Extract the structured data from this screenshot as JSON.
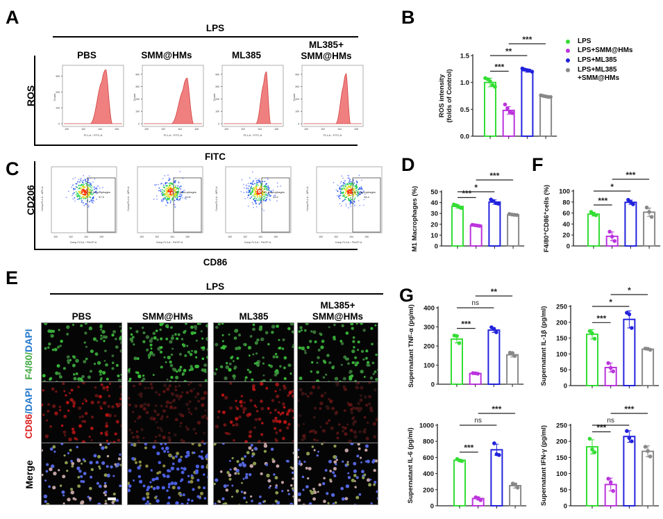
{
  "figure": {
    "panel_letters": {
      "A": "A",
      "B": "B",
      "C": "C",
      "D": "D",
      "E": "E",
      "F": "F",
      "G": "G"
    },
    "groups": [
      "PBS",
      "SMM@HMs",
      "ML385",
      "ML385+\nSMM@HMs"
    ],
    "group_header": "LPS",
    "colors": {
      "lps": "#33dd33",
      "lps_smm": "#bb33dd",
      "lps_ml385": "#2222dd",
      "lps_ml385_smm": "#888888",
      "histogram_fill": "#f08080",
      "histogram_line": "#d04040"
    }
  },
  "panel_a": {
    "header": "LPS",
    "row_label": "ROS",
    "x_label": "FITC",
    "columns": [
      "PBS",
      "SMM@HMs",
      "ML385",
      "ML385+\nSMM@HMs"
    ],
    "histogram_axis": {
      "y_label": "Count",
      "x_label": "FL1-A :: FITC-A",
      "x_ticks": [
        "10^0",
        "10^2",
        "10^4",
        "10^6"
      ]
    },
    "histograms": [
      {
        "y_ticks": [
          "0",
          "100",
          "200",
          "300"
        ],
        "peak_count": 340
      },
      {
        "y_ticks": [
          "0",
          "100",
          "200",
          "300",
          "400"
        ],
        "peak_count": 370
      },
      {
        "y_ticks": [
          "0",
          "100",
          "200",
          "300",
          "400"
        ],
        "peak_count": 420
      },
      {
        "y_ticks": [
          "0",
          "100",
          "200",
          "300",
          "400"
        ],
        "peak_count": 405
      }
    ]
  },
  "panel_c": {
    "y_label": "CD206",
    "x_label": "CD86",
    "scatter_axis": {
      "y_label": "Comp-FL4-A :: APC-A",
      "x_label": "Comp-FL3-A :: PerCP-A",
      "x_ticks": [
        "10^0",
        "10^2",
        "10^4",
        "10^6"
      ]
    },
    "gate_name": "M1 Macrophages",
    "gate_values": [
      "37.9",
      "19.0",
      "43.0",
      "28.4"
    ]
  },
  "panel_e": {
    "header": "LPS",
    "columns": [
      "PBS",
      "SMM@HMs",
      "ML385",
      "ML385+\nSMM@HMs"
    ],
    "rows": [
      {
        "label_parts": [
          {
            "text": "F4/80",
            "color": "#44aa44"
          },
          {
            "text": "/",
            "color": "#44aa44"
          },
          {
            "text": "DAPI",
            "color": "#2277cc"
          }
        ],
        "type": "green"
      },
      {
        "label_parts": [
          {
            "text": "CD86",
            "color": "#dd2222"
          },
          {
            "text": "/",
            "color": "#2277cc"
          },
          {
            "text": "DAPI",
            "color": "#2277cc"
          }
        ],
        "type": "red"
      },
      {
        "label_parts": [
          {
            "text": "Merge",
            "color": "#000000"
          }
        ],
        "type": "merge"
      }
    ]
  },
  "legend": {
    "items": [
      {
        "label": "LPS",
        "color": "#33dd33"
      },
      {
        "label": "LPS+SMM@HMs",
        "color": "#bb33dd"
      },
      {
        "label": "LPS+ML385",
        "color": "#2222dd"
      },
      {
        "label": "LPS+ML385\n+SMM@HMs",
        "color": "#888888"
      }
    ]
  },
  "chart_data": [
    {
      "id": "B",
      "type": "bar",
      "title": "",
      "ylabel": "ROS intensity\n(folds of Control)",
      "xlabel": "",
      "categories": [
        "LPS",
        "LPS+SMM@HMs",
        "LPS+ML385",
        "LPS+ML385+SMM@HMs"
      ],
      "values": [
        1.0,
        0.48,
        1.22,
        0.74
      ],
      "errors": [
        0.08,
        0.07,
        0.03,
        0.02
      ],
      "points": [
        [
          1.08,
          1.06,
          1.02,
          0.95,
          0.92
        ],
        [
          0.59,
          0.52,
          0.45,
          0.43
        ],
        [
          1.26,
          1.24,
          1.23,
          1.22,
          1.2
        ],
        [
          0.76,
          0.75,
          0.74,
          0.73,
          0.73
        ]
      ],
      "ylim": [
        0,
        1.5
      ],
      "yticks": [
        "0.0",
        "0.5",
        "1.0",
        "1.5"
      ],
      "significance": [
        {
          "from": 0,
          "to": 1,
          "label": "***"
        },
        {
          "from": 0,
          "to": 2,
          "label": "**"
        },
        {
          "from": 1,
          "to": 3,
          "label": "***"
        }
      ]
    },
    {
      "id": "D",
      "type": "bar",
      "ylabel": "M1 Macrophages (%)",
      "categories": [
        "LPS",
        "LPS+SMM@HMs",
        "LPS+ML385",
        "LPS+ML385+SMM@HMs"
      ],
      "values": [
        36.5,
        19.0,
        40.5,
        28.8
      ],
      "errors": [
        1.5,
        0.5,
        2.0,
        0.5
      ],
      "points": [
        [
          38.2,
          37.5,
          36.0,
          35.0
        ],
        [
          19.5,
          19.2,
          18.8,
          18.5
        ],
        [
          42.8,
          41.5,
          39.5,
          39.0
        ],
        [
          29.5,
          29.0,
          28.7,
          28.5
        ]
      ],
      "ylim": [
        0,
        50
      ],
      "yticks": [
        "0",
        "10",
        "20",
        "30",
        "40",
        "50"
      ],
      "significance": [
        {
          "from": 0,
          "to": 1,
          "label": "***"
        },
        {
          "from": 0,
          "to": 2,
          "label": "*"
        },
        {
          "from": 1,
          "to": 3,
          "label": "***"
        }
      ]
    },
    {
      "id": "F",
      "type": "bar",
      "ylabel": "F4/80⁺CD86⁺cells (%)",
      "categories": [
        "LPS",
        "LPS+SMM@HMs",
        "LPS+ML385",
        "LPS+ML385+SMM@HMs"
      ],
      "values": [
        58,
        17.5,
        79.5,
        61.5
      ],
      "errors": [
        3.5,
        8,
        4,
        7.5
      ],
      "points": [
        [
          62,
          58,
          56
        ],
        [
          26,
          17,
          9
        ],
        [
          84,
          80,
          76
        ],
        [
          70,
          62,
          53
        ]
      ],
      "ylim": [
        0,
        100
      ],
      "yticks": [
        "0",
        "20",
        "40",
        "60",
        "80",
        "100"
      ],
      "significance": [
        {
          "from": 0,
          "to": 1,
          "label": "***"
        },
        {
          "from": 0,
          "to": 2,
          "label": "*"
        },
        {
          "from": 1,
          "to": 3,
          "label": "***"
        }
      ]
    },
    {
      "id": "G1",
      "type": "bar",
      "ylabel": "Supernatant TNF-α (pg/ml)",
      "categories": [
        "LPS",
        "LPS+SMM@HMs",
        "LPS+ML385",
        "LPS+ML385+SMM@HMs"
      ],
      "values": [
        236,
        56,
        283,
        154
      ],
      "errors": [
        20,
        3,
        12,
        12
      ],
      "points": [
        [
          255,
          252,
          215
        ],
        [
          58,
          57,
          55
        ],
        [
          298,
          290,
          272
        ],
        [
          165,
          163,
          148
        ]
      ],
      "ylim": [
        0,
        400
      ],
      "yticks": [
        "0",
        "100",
        "200",
        "300",
        "400"
      ],
      "significance": [
        {
          "from": 0,
          "to": 1,
          "label": "***"
        },
        {
          "from": 0,
          "to": 2,
          "label": "ns"
        },
        {
          "from": 1,
          "to": 3,
          "label": "**"
        }
      ]
    },
    {
      "id": "G2",
      "type": "bar",
      "ylabel": "Supernatant IL-1β (pg/ml)",
      "categories": [
        "LPS",
        "LPS+SMM@HMs",
        "LPS+ML385",
        "LPS+ML385+SMM@HMs"
      ],
      "values": [
        162,
        57,
        209,
        115
      ],
      "errors": [
        15,
        14,
        27,
        2
      ],
      "points": [
        [
          172,
          165,
          148
        ],
        [
          71,
          56,
          45
        ],
        [
          230,
          225,
          182
        ],
        [
          117,
          116,
          113
        ]
      ],
      "ylim": [
        0,
        250
      ],
      "yticks": [
        "0",
        "50",
        "100",
        "150",
        "200",
        "250"
      ],
      "significance": [
        {
          "from": 0,
          "to": 1,
          "label": "***"
        },
        {
          "from": 0,
          "to": 2,
          "label": "*"
        },
        {
          "from": 1,
          "to": 3,
          "label": "*"
        }
      ]
    },
    {
      "id": "G3",
      "type": "bar",
      "ylabel": "Supernatant IL-6 (pg/ml)",
      "categories": [
        "LPS",
        "LPS+SMM@HMs",
        "LPS+ML385",
        "LPS+ML385+SMM@HMs"
      ],
      "values": [
        565,
        90,
        695,
        250
      ],
      "errors": [
        15,
        20,
        70,
        30
      ],
      "points": [
        [
          580,
          562,
          555
        ],
        [
          105,
          95,
          70
        ],
        [
          775,
          640,
          630
        ],
        [
          275,
          265,
          225
        ]
      ],
      "ylim": [
        0,
        1000
      ],
      "yticks": [
        "0",
        "200",
        "400",
        "600",
        "800",
        "1000"
      ],
      "significance": [
        {
          "from": 0,
          "to": 1,
          "label": "***"
        },
        {
          "from": 0,
          "to": 2,
          "label": "ns"
        },
        {
          "from": 1,
          "to": 3,
          "label": "***"
        }
      ]
    },
    {
      "id": "G4",
      "type": "bar",
      "ylabel": "Supernatant IFN-γ (pg/ml)",
      "categories": [
        "LPS",
        "LPS+SMM@HMs",
        "LPS+ML385",
        "LPS+ML385+SMM@HMs"
      ],
      "values": [
        183,
        66,
        215,
        169
      ],
      "errors": [
        22,
        20,
        18,
        17
      ],
      "points": [
        [
          208,
          175,
          166
        ],
        [
          84,
          73,
          46
        ],
        [
          232,
          210,
          200
        ],
        [
          183,
          170,
          153
        ]
      ],
      "ylim": [
        0,
        250
      ],
      "yticks": [
        "0",
        "50",
        "100",
        "150",
        "200",
        "250"
      ],
      "significance": [
        {
          "from": 0,
          "to": 1,
          "label": "***"
        },
        {
          "from": 0,
          "to": 2,
          "label": "ns"
        },
        {
          "from": 1,
          "to": 3,
          "label": "***"
        }
      ]
    }
  ]
}
